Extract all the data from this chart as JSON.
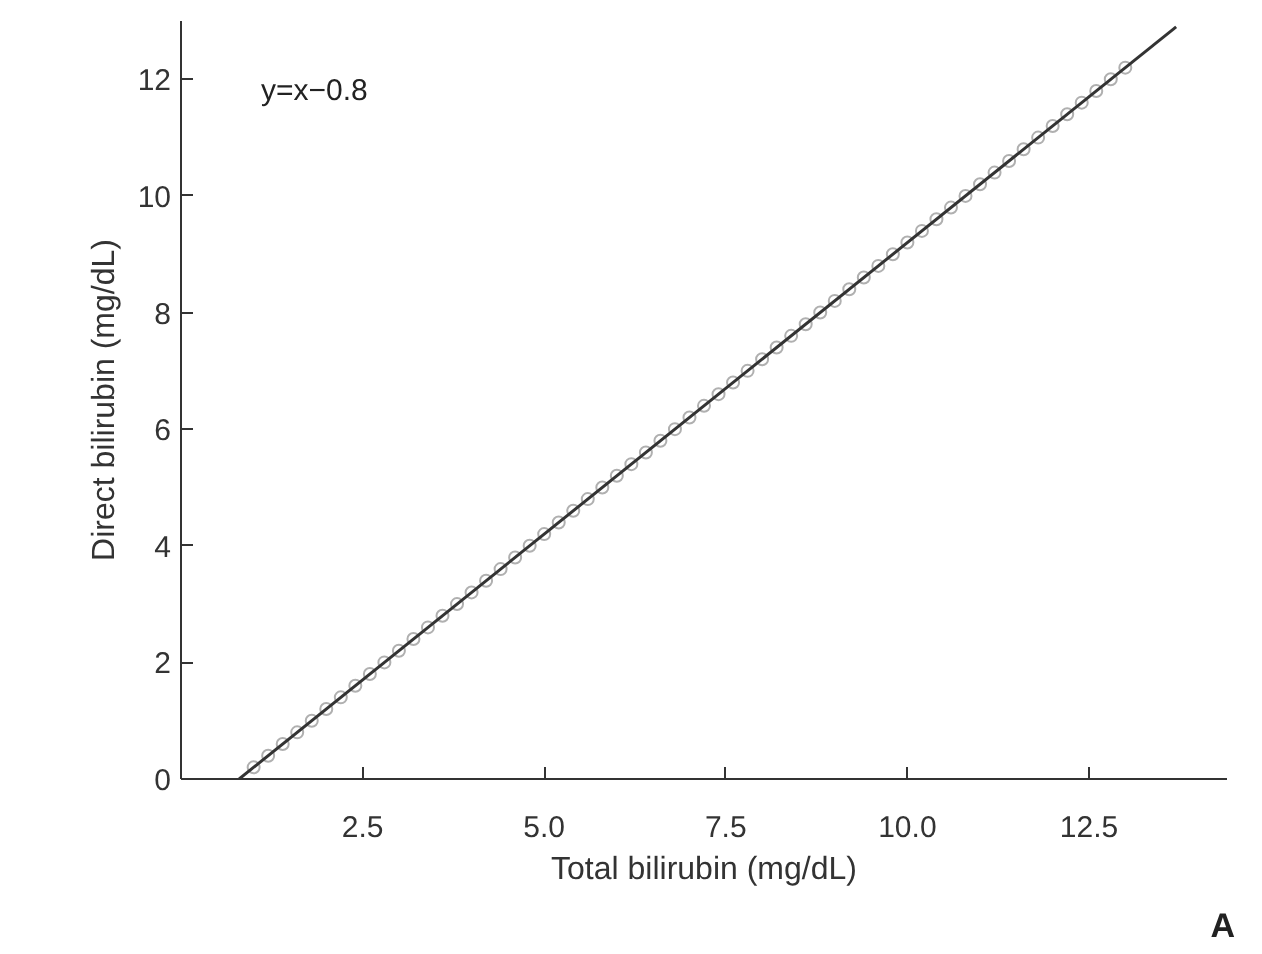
{
  "chart_data": {
    "type": "scatter",
    "xlabel": "Total bilirubin (mg/dL)",
    "ylabel": "Direct bilirubin (mg/dL)",
    "xlim": [
      0,
      14.4
    ],
    "ylim": [
      0,
      13
    ],
    "xticks": [
      {
        "value": 2.5,
        "label": "2.5"
      },
      {
        "value": 5,
        "label": "5.0"
      },
      {
        "value": 7.5,
        "label": "7.5"
      },
      {
        "value": 10,
        "label": "10.0"
      },
      {
        "value": 12.5,
        "label": "12.5"
      }
    ],
    "yticks": [
      0,
      2,
      4,
      6,
      8,
      10,
      12
    ],
    "grid": false,
    "series": [
      {
        "marker": "circle",
        "color": "#b0b0b0",
        "x": [
          1.0,
          1.2,
          1.4,
          1.6,
          1.8,
          2.0,
          2.2,
          2.4,
          2.6,
          2.8,
          3.0,
          3.2,
          3.4,
          3.6,
          3.8,
          4.0,
          4.2,
          4.4,
          4.6,
          4.8,
          5.0,
          5.2,
          5.4,
          5.6,
          5.8,
          6.0,
          6.2,
          6.4,
          6.6,
          6.8,
          7.0,
          7.2,
          7.4,
          7.6,
          7.8,
          8.0,
          8.2,
          8.4,
          8.6,
          8.8,
          9.0,
          9.2,
          9.4,
          9.6,
          9.8,
          10.0,
          10.2,
          10.4,
          10.6,
          10.8,
          11.0,
          11.2,
          11.4,
          11.6,
          11.8,
          12.0,
          12.2,
          12.4,
          12.6,
          12.8,
          13.0
        ],
        "values": [
          0.2,
          0.4,
          0.6,
          0.8,
          1.0,
          1.2,
          1.4,
          1.6,
          1.8,
          2.0,
          2.2,
          2.4,
          2.6,
          2.8,
          3.0,
          3.2,
          3.4,
          3.6,
          3.8,
          4.0,
          4.2,
          4.4,
          4.6,
          4.8,
          5.0,
          5.2,
          5.4,
          5.6,
          5.8,
          6.0,
          6.2,
          6.4,
          6.6,
          6.8,
          7.0,
          7.2,
          7.4,
          7.6,
          7.8,
          8.0,
          8.2,
          8.4,
          8.6,
          8.8,
          9.0,
          9.2,
          9.4,
          9.6,
          9.8,
          10.0,
          10.2,
          10.4,
          10.6,
          10.8,
          11.0,
          11.2,
          11.4,
          11.6,
          11.8,
          12.0,
          12.2
        ]
      },
      {
        "type": "line",
        "color": "#333333",
        "line_style": "solid",
        "x": [
          0.8,
          13.7
        ],
        "values": [
          0,
          12.9
        ]
      }
    ],
    "annotations": [
      "y=x−0.8",
      "A"
    ]
  }
}
